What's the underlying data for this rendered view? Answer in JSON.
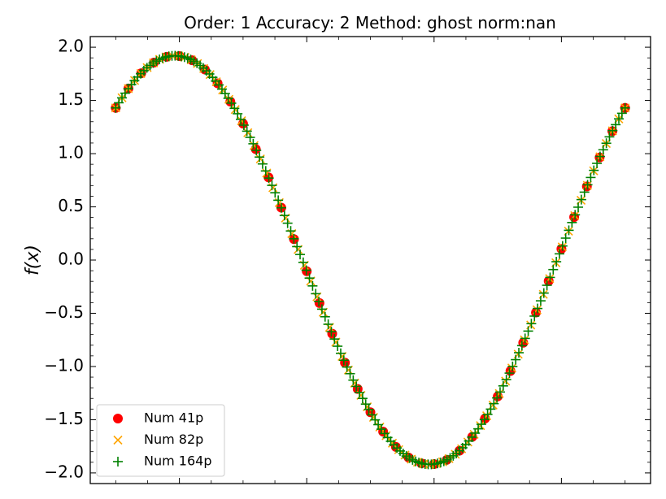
{
  "chart_data": {
    "type": "scatter",
    "title": "Order: 1 Accuracy: 2 Method: ghost norm:nan",
    "xlabel": "",
    "ylabel": "f(x)",
    "xlim": [
      -0.1,
      2.1
    ],
    "ylim": [
      -2.1,
      2.1
    ],
    "yticks": [
      -2.0,
      -1.5,
      -1.0,
      -0.5,
      0.0,
      0.5,
      1.0,
      1.5,
      2.0
    ],
    "ytick_labels": [
      "−2.0",
      "−1.5",
      "−1.0",
      "−0.5",
      "0.0",
      "0.5",
      "1.0",
      "1.5",
      "2.0"
    ],
    "xticks_major": [
      0.25,
      0.75,
      1.25,
      1.75
    ],
    "show_x_tick_labels": false,
    "grid": false,
    "legend_position": "lower-left",
    "function": {
      "form": "amplitude*sin(pi*x + phase)",
      "amplitude": 1.92,
      "phase": 0.84,
      "x_start": 0.0,
      "x_end": 2.0
    },
    "series": [
      {
        "name": "Num 41p",
        "points": 41,
        "marker": "circle",
        "color": "#ff0000"
      },
      {
        "name": "Num 82p",
        "points": 82,
        "marker": "x",
        "color": "#ffa500"
      },
      {
        "name": "Num 164p",
        "points": 164,
        "marker": "plus",
        "color": "#008000"
      }
    ]
  }
}
